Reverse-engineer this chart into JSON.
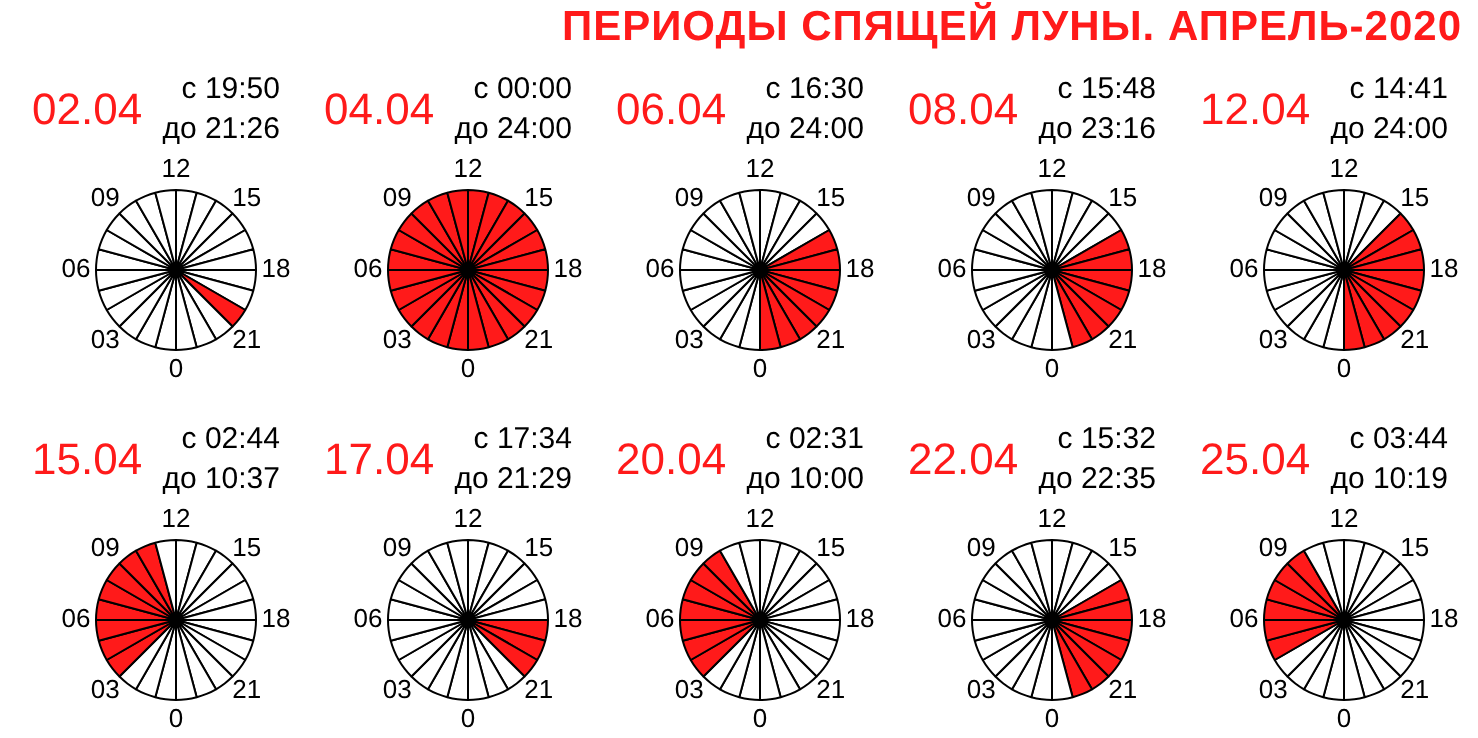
{
  "chart_data": [
    {
      "type": "other",
      "title": "ПЕРИОДЫ СПЯЩЕЙ ЛУНЫ. АПРЕЛЬ-2020"
    },
    {
      "type": "pie",
      "title": "02.04",
      "annotations": [
        "с 19:50",
        "до 21:26",
        "0",
        "03",
        "06",
        "09",
        "12",
        "15",
        "18",
        "21"
      ],
      "categories": [
        null,
        null,
        null,
        null,
        null,
        null,
        null,
        null,
        null,
        null,
        null,
        null,
        null,
        null,
        null,
        null,
        null,
        null,
        null,
        null,
        null,
        null,
        null,
        null
      ],
      "values": [
        4.1667,
        4.1667,
        4.1667,
        4.1667,
        4.1667,
        4.1667,
        4.1667,
        4.1667,
        4.1667,
        4.1667,
        4.1667,
        4.1667,
        4.1667,
        4.1667,
        4.1667,
        4.1667,
        4.1667,
        4.1667,
        4.1667,
        4.1667,
        4.1667,
        4.1667,
        4.1667,
        4.1667
      ],
      "colors": [
        "#ffffff",
        "#ffffff",
        "#ffffff",
        "#ffffff",
        "#ffffff",
        "#ffffff",
        "#ffffff",
        "#ffffff",
        "#ffffff",
        "#ffffff",
        "#ffffff",
        "#ffffff",
        "#ffffff",
        "#ffffff",
        "#ffffff",
        "#ffffff",
        "#ffffff",
        "#ffffff",
        "#ffffff",
        "#ffffff",
        "#ff1a1a",
        "#ffffff",
        "#ffffff",
        "#ffffff"
      ]
    },
    {
      "type": "pie",
      "title": "04.04",
      "annotations": [
        "с 00:00",
        "до 24:00",
        "0",
        "03",
        "06",
        "09",
        "12",
        "15",
        "18",
        "21"
      ],
      "categories": [
        null,
        null,
        null,
        null,
        null,
        null,
        null,
        null,
        null,
        null,
        null,
        null,
        null,
        null,
        null,
        null,
        null,
        null,
        null,
        null,
        null,
        null,
        null,
        null
      ],
      "values": [
        4.1667,
        4.1667,
        4.1667,
        4.1667,
        4.1667,
        4.1667,
        4.1667,
        4.1667,
        4.1667,
        4.1667,
        4.1667,
        4.1667,
        4.1667,
        4.1667,
        4.1667,
        4.1667,
        4.1667,
        4.1667,
        4.1667,
        4.1667,
        4.1667,
        4.1667,
        4.1667,
        4.1667
      ],
      "colors": [
        "#ff1a1a",
        "#ff1a1a",
        "#ff1a1a",
        "#ff1a1a",
        "#ff1a1a",
        "#ff1a1a",
        "#ff1a1a",
        "#ff1a1a",
        "#ff1a1a",
        "#ff1a1a",
        "#ff1a1a",
        "#ff1a1a",
        "#ff1a1a",
        "#ff1a1a",
        "#ff1a1a",
        "#ff1a1a",
        "#ff1a1a",
        "#ff1a1a",
        "#ff1a1a",
        "#ff1a1a",
        "#ff1a1a",
        "#ff1a1a",
        "#ff1a1a",
        "#ff1a1a"
      ]
    },
    {
      "type": "pie",
      "title": "06.04",
      "annotations": [
        "с 16:30",
        "до 24:00",
        "0",
        "03",
        "06",
        "09",
        "12",
        "15",
        "18",
        "21"
      ],
      "categories": [
        null,
        null,
        null,
        null,
        null,
        null,
        null,
        null,
        null,
        null,
        null,
        null,
        null,
        null,
        null,
        null,
        null,
        null,
        null,
        null,
        null,
        null,
        null,
        null
      ],
      "values": [
        4.1667,
        4.1667,
        4.1667,
        4.1667,
        4.1667,
        4.1667,
        4.1667,
        4.1667,
        4.1667,
        4.1667,
        4.1667,
        4.1667,
        4.1667,
        4.1667,
        4.1667,
        4.1667,
        4.1667,
        4.1667,
        4.1667,
        4.1667,
        4.1667,
        4.1667,
        4.1667,
        4.1667
      ],
      "colors": [
        "#ffffff",
        "#ffffff",
        "#ffffff",
        "#ffffff",
        "#ffffff",
        "#ffffff",
        "#ffffff",
        "#ffffff",
        "#ffffff",
        "#ffffff",
        "#ffffff",
        "#ffffff",
        "#ffffff",
        "#ffffff",
        "#ffffff",
        "#ffffff",
        "#ff1a1a",
        "#ff1a1a",
        "#ff1a1a",
        "#ff1a1a",
        "#ff1a1a",
        "#ff1a1a",
        "#ff1a1a",
        "#ff1a1a"
      ]
    },
    {
      "type": "pie",
      "title": "08.04",
      "annotations": [
        "с 15:48",
        "до 23:16",
        "0",
        "03",
        "06",
        "09",
        "12",
        "15",
        "18",
        "21"
      ],
      "categories": [
        null,
        null,
        null,
        null,
        null,
        null,
        null,
        null,
        null,
        null,
        null,
        null,
        null,
        null,
        null,
        null,
        null,
        null,
        null,
        null,
        null,
        null,
        null,
        null
      ],
      "values": [
        4.1667,
        4.1667,
        4.1667,
        4.1667,
        4.1667,
        4.1667,
        4.1667,
        4.1667,
        4.1667,
        4.1667,
        4.1667,
        4.1667,
        4.1667,
        4.1667,
        4.1667,
        4.1667,
        4.1667,
        4.1667,
        4.1667,
        4.1667,
        4.1667,
        4.1667,
        4.1667,
        4.1667
      ],
      "colors": [
        "#ffffff",
        "#ffffff",
        "#ffffff",
        "#ffffff",
        "#ffffff",
        "#ffffff",
        "#ffffff",
        "#ffffff",
        "#ffffff",
        "#ffffff",
        "#ffffff",
        "#ffffff",
        "#ffffff",
        "#ffffff",
        "#ffffff",
        "#ffffff",
        "#ff1a1a",
        "#ff1a1a",
        "#ff1a1a",
        "#ff1a1a",
        "#ff1a1a",
        "#ff1a1a",
        "#ff1a1a",
        "#ffffff"
      ]
    },
    {
      "type": "pie",
      "title": "12.04",
      "annotations": [
        "с 14:41",
        "до 24:00",
        "0",
        "03",
        "06",
        "09",
        "12",
        "15",
        "18",
        "21"
      ],
      "categories": [
        null,
        null,
        null,
        null,
        null,
        null,
        null,
        null,
        null,
        null,
        null,
        null,
        null,
        null,
        null,
        null,
        null,
        null,
        null,
        null,
        null,
        null,
        null,
        null
      ],
      "values": [
        4.1667,
        4.1667,
        4.1667,
        4.1667,
        4.1667,
        4.1667,
        4.1667,
        4.1667,
        4.1667,
        4.1667,
        4.1667,
        4.1667,
        4.1667,
        4.1667,
        4.1667,
        4.1667,
        4.1667,
        4.1667,
        4.1667,
        4.1667,
        4.1667,
        4.1667,
        4.1667,
        4.1667
      ],
      "colors": [
        "#ffffff",
        "#ffffff",
        "#ffffff",
        "#ffffff",
        "#ffffff",
        "#ffffff",
        "#ffffff",
        "#ffffff",
        "#ffffff",
        "#ffffff",
        "#ffffff",
        "#ffffff",
        "#ffffff",
        "#ffffff",
        "#ffffff",
        "#ff1a1a",
        "#ff1a1a",
        "#ff1a1a",
        "#ff1a1a",
        "#ff1a1a",
        "#ff1a1a",
        "#ff1a1a",
        "#ff1a1a",
        "#ff1a1a"
      ]
    },
    {
      "type": "pie",
      "title": "15.04",
      "annotations": [
        "с 02:44",
        "до 10:37",
        "0",
        "03",
        "06",
        "09",
        "12",
        "15",
        "18",
        "21"
      ],
      "categories": [
        null,
        null,
        null,
        null,
        null,
        null,
        null,
        null,
        null,
        null,
        null,
        null,
        null,
        null,
        null,
        null,
        null,
        null,
        null,
        null,
        null,
        null,
        null,
        null
      ],
      "values": [
        4.1667,
        4.1667,
        4.1667,
        4.1667,
        4.1667,
        4.1667,
        4.1667,
        4.1667,
        4.1667,
        4.1667,
        4.1667,
        4.1667,
        4.1667,
        4.1667,
        4.1667,
        4.1667,
        4.1667,
        4.1667,
        4.1667,
        4.1667,
        4.1667,
        4.1667,
        4.1667,
        4.1667
      ],
      "colors": [
        "#ffffff",
        "#ffffff",
        "#ffffff",
        "#ff1a1a",
        "#ff1a1a",
        "#ff1a1a",
        "#ff1a1a",
        "#ff1a1a",
        "#ff1a1a",
        "#ff1a1a",
        "#ff1a1a",
        "#ffffff",
        "#ffffff",
        "#ffffff",
        "#ffffff",
        "#ffffff",
        "#ffffff",
        "#ffffff",
        "#ffffff",
        "#ffffff",
        "#ffffff",
        "#ffffff",
        "#ffffff",
        "#ffffff"
      ]
    },
    {
      "type": "pie",
      "title": "17.04",
      "annotations": [
        "с 17:34",
        "до 21:29",
        "0",
        "03",
        "06",
        "09",
        "12",
        "15",
        "18",
        "21"
      ],
      "categories": [
        null,
        null,
        null,
        null,
        null,
        null,
        null,
        null,
        null,
        null,
        null,
        null,
        null,
        null,
        null,
        null,
        null,
        null,
        null,
        null,
        null,
        null,
        null,
        null
      ],
      "values": [
        4.1667,
        4.1667,
        4.1667,
        4.1667,
        4.1667,
        4.1667,
        4.1667,
        4.1667,
        4.1667,
        4.1667,
        4.1667,
        4.1667,
        4.1667,
        4.1667,
        4.1667,
        4.1667,
        4.1667,
        4.1667,
        4.1667,
        4.1667,
        4.1667,
        4.1667,
        4.1667,
        4.1667
      ],
      "colors": [
        "#ffffff",
        "#ffffff",
        "#ffffff",
        "#ffffff",
        "#ffffff",
        "#ffffff",
        "#ffffff",
        "#ffffff",
        "#ffffff",
        "#ffffff",
        "#ffffff",
        "#ffffff",
        "#ffffff",
        "#ffffff",
        "#ffffff",
        "#ffffff",
        "#ffffff",
        "#ffffff",
        "#ff1a1a",
        "#ff1a1a",
        "#ff1a1a",
        "#ffffff",
        "#ffffff",
        "#ffffff"
      ]
    },
    {
      "type": "pie",
      "title": "20.04",
      "annotations": [
        "с 02:31",
        "до 10:00",
        "0",
        "03",
        "06",
        "09",
        "12",
        "15",
        "18",
        "21"
      ],
      "categories": [
        null,
        null,
        null,
        null,
        null,
        null,
        null,
        null,
        null,
        null,
        null,
        null,
        null,
        null,
        null,
        null,
        null,
        null,
        null,
        null,
        null,
        null,
        null,
        null
      ],
      "values": [
        4.1667,
        4.1667,
        4.1667,
        4.1667,
        4.1667,
        4.1667,
        4.1667,
        4.1667,
        4.1667,
        4.1667,
        4.1667,
        4.1667,
        4.1667,
        4.1667,
        4.1667,
        4.1667,
        4.1667,
        4.1667,
        4.1667,
        4.1667,
        4.1667,
        4.1667,
        4.1667,
        4.1667
      ],
      "colors": [
        "#ffffff",
        "#ffffff",
        "#ffffff",
        "#ff1a1a",
        "#ff1a1a",
        "#ff1a1a",
        "#ff1a1a",
        "#ff1a1a",
        "#ff1a1a",
        "#ff1a1a",
        "#ffffff",
        "#ffffff",
        "#ffffff",
        "#ffffff",
        "#ffffff",
        "#ffffff",
        "#ffffff",
        "#ffffff",
        "#ffffff",
        "#ffffff",
        "#ffffff",
        "#ffffff",
        "#ffffff",
        "#ffffff"
      ]
    },
    {
      "type": "pie",
      "title": "22.04",
      "annotations": [
        "с 15:32",
        "до 22:35",
        "0",
        "03",
        "06",
        "09",
        "12",
        "15",
        "18",
        "21"
      ],
      "categories": [
        null,
        null,
        null,
        null,
        null,
        null,
        null,
        null,
        null,
        null,
        null,
        null,
        null,
        null,
        null,
        null,
        null,
        null,
        null,
        null,
        null,
        null,
        null,
        null
      ],
      "values": [
        4.1667,
        4.1667,
        4.1667,
        4.1667,
        4.1667,
        4.1667,
        4.1667,
        4.1667,
        4.1667,
        4.1667,
        4.1667,
        4.1667,
        4.1667,
        4.1667,
        4.1667,
        4.1667,
        4.1667,
        4.1667,
        4.1667,
        4.1667,
        4.1667,
        4.1667,
        4.1667,
        4.1667
      ],
      "colors": [
        "#ffffff",
        "#ffffff",
        "#ffffff",
        "#ffffff",
        "#ffffff",
        "#ffffff",
        "#ffffff",
        "#ffffff",
        "#ffffff",
        "#ffffff",
        "#ffffff",
        "#ffffff",
        "#ffffff",
        "#ffffff",
        "#ffffff",
        "#ffffff",
        "#ff1a1a",
        "#ff1a1a",
        "#ff1a1a",
        "#ff1a1a",
        "#ff1a1a",
        "#ff1a1a",
        "#ff1a1a",
        "#ffffff"
      ]
    },
    {
      "type": "pie",
      "title": "25.04",
      "annotations": [
        "с 03:44",
        "до 10:19",
        "0",
        "03",
        "06",
        "09",
        "12",
        "15",
        "18",
        "21"
      ],
      "categories": [
        null,
        null,
        null,
        null,
        null,
        null,
        null,
        null,
        null,
        null,
        null,
        null,
        null,
        null,
        null,
        null,
        null,
        null,
        null,
        null,
        null,
        null,
        null,
        null
      ],
      "values": [
        4.1667,
        4.1667,
        4.1667,
        4.1667,
        4.1667,
        4.1667,
        4.1667,
        4.1667,
        4.1667,
        4.1667,
        4.1667,
        4.1667,
        4.1667,
        4.1667,
        4.1667,
        4.1667,
        4.1667,
        4.1667,
        4.1667,
        4.1667,
        4.1667,
        4.1667,
        4.1667,
        4.1667
      ],
      "colors": [
        "#ffffff",
        "#ffffff",
        "#ffffff",
        "#ffffff",
        "#ff1a1a",
        "#ff1a1a",
        "#ff1a1a",
        "#ff1a1a",
        "#ff1a1a",
        "#ff1a1a",
        "#ffffff",
        "#ffffff",
        "#ffffff",
        "#ffffff",
        "#ffffff",
        "#ffffff",
        "#ffffff",
        "#ffffff",
        "#ffffff",
        "#ffffff",
        "#ffffff",
        "#ffffff",
        "#ffffff",
        "#ffffff"
      ]
    }
  ]
}
